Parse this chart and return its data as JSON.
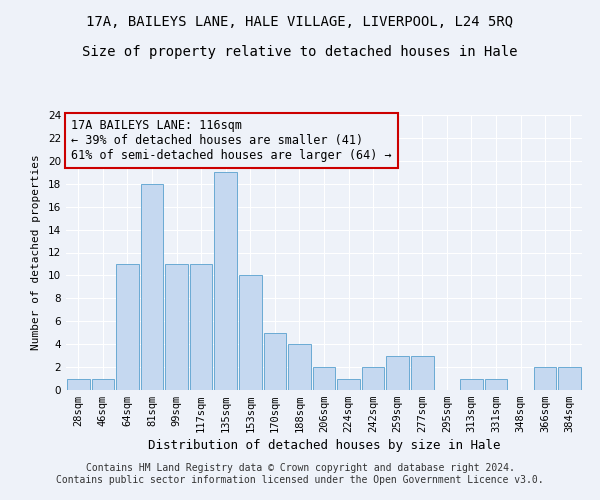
{
  "title_main": "17A, BAILEYS LANE, HALE VILLAGE, LIVERPOOL, L24 5RQ",
  "title_sub": "Size of property relative to detached houses in Hale",
  "xlabel": "Distribution of detached houses by size in Hale",
  "ylabel": "Number of detached properties",
  "categories": [
    "28sqm",
    "46sqm",
    "64sqm",
    "81sqm",
    "99sqm",
    "117sqm",
    "135sqm",
    "153sqm",
    "170sqm",
    "188sqm",
    "206sqm",
    "224sqm",
    "242sqm",
    "259sqm",
    "277sqm",
    "295sqm",
    "313sqm",
    "331sqm",
    "348sqm",
    "366sqm",
    "384sqm"
  ],
  "values": [
    1,
    1,
    11,
    18,
    11,
    11,
    19,
    10,
    5,
    4,
    2,
    1,
    2,
    3,
    3,
    0,
    1,
    1,
    0,
    2,
    2
  ],
  "bar_color": "#c5d8f0",
  "bar_edge_color": "#6aaad4",
  "annotation_text": "17A BAILEYS LANE: 116sqm\n← 39% of detached houses are smaller (41)\n61% of semi-detached houses are larger (64) →",
  "annotation_box_edge_color": "#cc0000",
  "ylim": [
    0,
    24
  ],
  "yticks": [
    0,
    2,
    4,
    6,
    8,
    10,
    12,
    14,
    16,
    18,
    20,
    22,
    24
  ],
  "footer_text": "Contains HM Land Registry data © Crown copyright and database right 2024.\nContains public sector information licensed under the Open Government Licence v3.0.",
  "background_color": "#eef2f9",
  "grid_color": "#ffffff",
  "title_main_fontsize": 10,
  "title_sub_fontsize": 10,
  "xlabel_fontsize": 9,
  "ylabel_fontsize": 8,
  "tick_fontsize": 7.5,
  "annotation_fontsize": 8.5,
  "footer_fontsize": 7
}
